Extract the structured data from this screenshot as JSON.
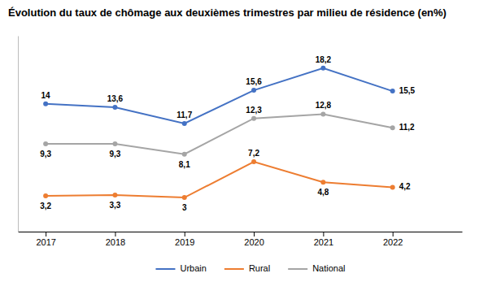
{
  "chart_data": {
    "type": "line",
    "title": "Évolution du taux de chômage aux deuxièmes trimestres par milieu de résidence (en%)",
    "x": [
      2017,
      2018,
      2019,
      2020,
      2021,
      2022
    ],
    "xlim": [
      2016.6,
      2023.0
    ],
    "xticks": [
      2017,
      2018,
      2019,
      2020,
      2021,
      2022
    ],
    "ylim": [
      -1,
      22
    ],
    "tick_labels": "x",
    "grid": false,
    "legend": "bottom",
    "data_labels": true,
    "series": [
      {
        "name": "Urbain",
        "color": "#4472C4",
        "marker": "circle",
        "values": [
          14,
          13.6,
          11.7,
          15.6,
          18.2,
          15.5
        ],
        "value_labels": [
          "14",
          "13,6",
          "11,7",
          "15,6",
          "18,2",
          "15,5"
        ]
      },
      {
        "name": "Rural",
        "color": "#ED7D31",
        "marker": "circle",
        "values": [
          3.2,
          3.3,
          3,
          7.2,
          4.8,
          4.2
        ],
        "value_labels": [
          "3,2",
          "3,3",
          "3",
          "7,2",
          "4,8",
          "4,2"
        ]
      },
      {
        "name": "National",
        "color": "#A5A5A5",
        "marker": "circle",
        "values": [
          9.3,
          9.3,
          8.1,
          12.3,
          12.8,
          11.2
        ],
        "value_labels": [
          "9,3",
          "9,3",
          "8,1",
          "12,3",
          "12,8",
          "11,2"
        ]
      }
    ]
  }
}
